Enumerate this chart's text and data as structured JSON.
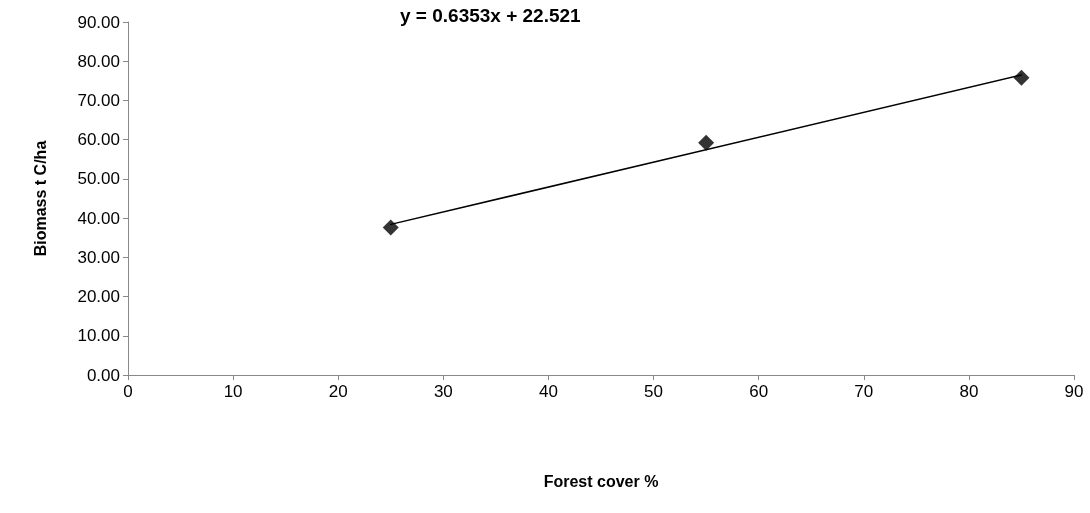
{
  "chart_data": {
    "type": "scatter",
    "xlabel": "Forest cover %",
    "ylabel": "Biomass t C/ha",
    "annotations": [
      "y = 0.6353x + 22.521"
    ],
    "series": [
      {
        "color": "#000000",
        "marker": "diamond",
        "x": [
          25,
          55,
          85
        ],
        "values": [
          37.6,
          59.2,
          75.8
        ]
      },
      {
        "type": "line",
        "color": "#000000",
        "marker": "none",
        "x": [
          25,
          85
        ],
        "values": [
          38.4,
          76.5
        ]
      }
    ],
    "xlim": [
      0,
      90
    ],
    "xticks": [
      0,
      10,
      20,
      30,
      40,
      50,
      60,
      70,
      80,
      90
    ],
    "ylim": [
      0,
      90
    ],
    "yticks": [
      {
        "value": 0,
        "label": "0.00"
      },
      {
        "value": 10,
        "label": "10.00"
      },
      {
        "value": 20,
        "label": "20.00"
      },
      {
        "value": 30,
        "label": "30.00"
      },
      {
        "value": 40,
        "label": "40.00"
      },
      {
        "value": 50,
        "label": "50.00"
      },
      {
        "value": 60,
        "label": "60.00"
      },
      {
        "value": 70,
        "label": "70.00"
      },
      {
        "value": 80,
        "label": "80.00"
      },
      {
        "value": 90,
        "label": "90.00"
      }
    ],
    "grid": false
  }
}
